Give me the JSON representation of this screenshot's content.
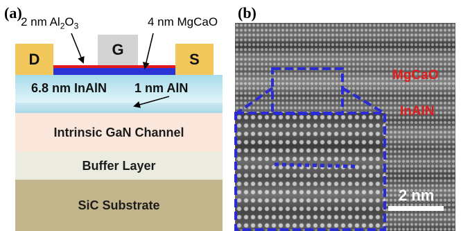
{
  "panel_a": {
    "label": "(a)",
    "layers": {
      "substrate": "SiC Substrate",
      "buffer": "Buffer Layer",
      "channel": "Intrinsic GaN Channel",
      "barrier": "6.8 nm InAlN",
      "interlayer": "1 nm AlN"
    },
    "contacts": {
      "drain": "D",
      "source": "S",
      "gate": "G"
    },
    "callouts": {
      "al2o3_prefix": "2 nm Al",
      "al2o3_sub1": "2",
      "al2o3_mid": "O",
      "al2o3_sub2": "3",
      "mgcao": "4 nm MgCaO"
    },
    "colors": {
      "substrate": "#c3b58b",
      "buffer": "#ecebe0",
      "channel": "#fae6da",
      "barrier": "#a6dceb",
      "contacts": "#f2c75c",
      "gate": "#d3d3d3",
      "mgcao_film": "#2b33d6",
      "al2o3_film": "#e4171c"
    }
  },
  "panel_b": {
    "label": "(b)",
    "labels": {
      "mgcao": "MgCaO",
      "inaln": "InAlN"
    },
    "scale_bar": "2 nm",
    "colors": {
      "labels": "#e01b1b",
      "inset_border": "#2b2bd6"
    }
  }
}
